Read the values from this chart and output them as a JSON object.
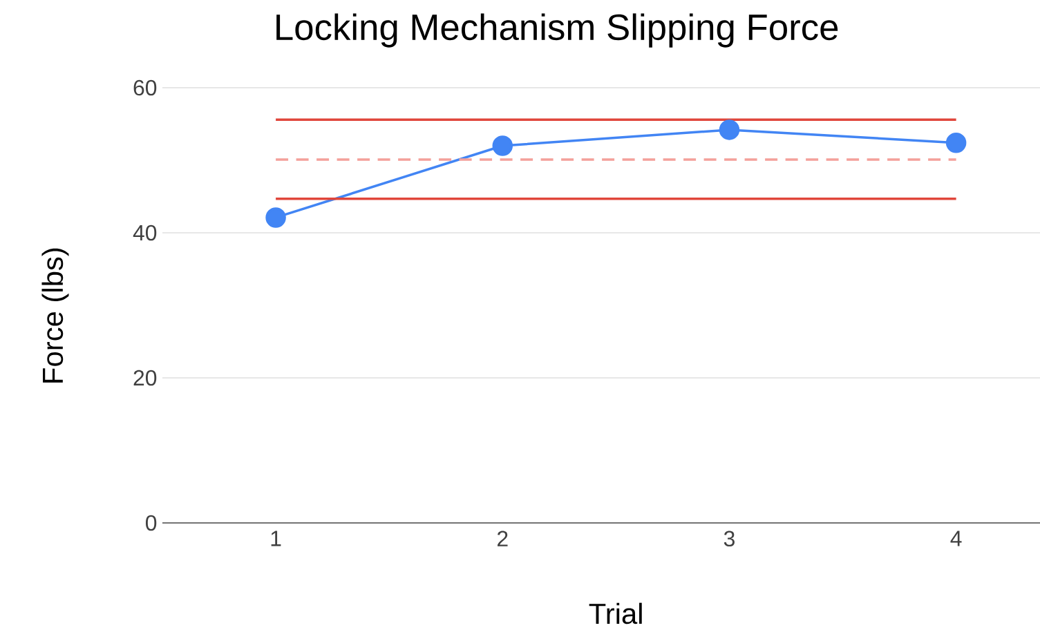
{
  "chart_data": {
    "type": "line",
    "title": "Locking Mechanism Slipping Force",
    "xlabel": "Trial",
    "ylabel": "Force (lbs)",
    "categories": [
      "1",
      "2",
      "3",
      "4"
    ],
    "series": [
      {
        "color": "#4285f4",
        "values": [
          42.1,
          52.0,
          54.2,
          52.4
        ],
        "marker": "circle",
        "line_style": "solid"
      },
      {
        "color": "#e0463b",
        "values": [
          55.6,
          55.6,
          55.6,
          55.6
        ],
        "marker": "none",
        "line_style": "solid"
      },
      {
        "color": "#f4a09a",
        "values": [
          50.1,
          50.1,
          50.1,
          50.1
        ],
        "marker": "none",
        "line_style": "dashed"
      },
      {
        "color": "#e0463b",
        "values": [
          44.7,
          44.7,
          44.7,
          44.7
        ],
        "marker": "none",
        "line_style": "solid"
      }
    ],
    "ylim": [
      0,
      60
    ],
    "yticks": [
      0,
      20,
      40,
      60
    ],
    "grid": "y"
  }
}
